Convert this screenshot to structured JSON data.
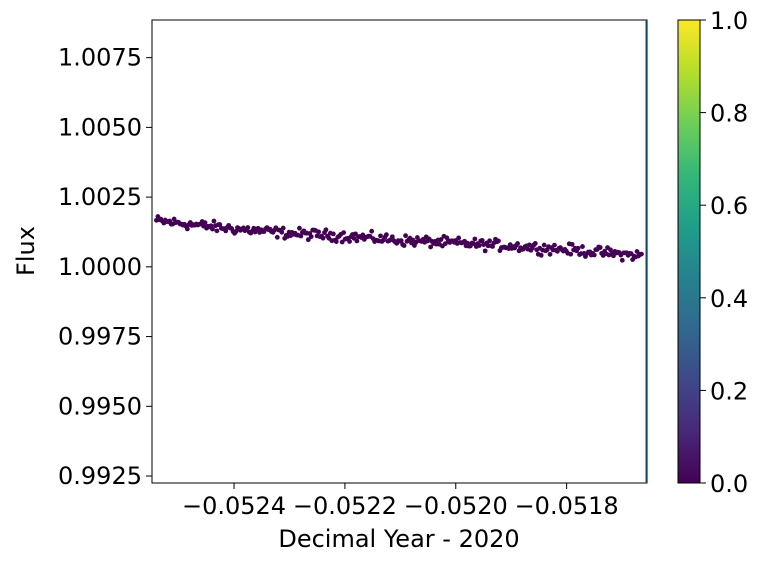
{
  "chart_data": {
    "type": "scatter",
    "xlabel": "Decimal Year - 2020",
    "ylabel": "Flux",
    "xlim": [
      -0.052548,
      -0.051655
    ],
    "ylim": [
      0.99225,
      1.00885
    ],
    "xticks": [
      -0.0524,
      -0.0522,
      -0.052,
      -0.0518
    ],
    "xtick_labels": [
      "−0.0524",
      "−0.0522",
      "−0.0520",
      "−0.0518"
    ],
    "yticks": [
      0.9925,
      0.995,
      0.9975,
      1.0,
      1.0025,
      1.005,
      1.0075
    ],
    "ytick_labels": [
      "0.9925",
      "0.9950",
      "0.9975",
      "1.0000",
      "1.0025",
      "1.0050",
      "1.0075"
    ],
    "grid": false,
    "marker_color": "#440154",
    "colorbar": {
      "range": [
        0.0,
        1.0
      ],
      "ticks": [
        0.0,
        0.2,
        0.4,
        0.6,
        0.8,
        1.0
      ],
      "tick_labels": [
        "0.0",
        "0.2",
        "0.4",
        "0.6",
        "0.8",
        "1.0"
      ],
      "colormap": "viridis",
      "stops": [
        "#440154",
        "#482878",
        "#3e4989",
        "#31688e",
        "#26828e",
        "#1f9e89",
        "#35b779",
        "#6ece58",
        "#b5de2b",
        "#fde725"
      ]
    },
    "baseline": {
      "x": [
        -0.05254,
        -0.05242,
        -0.0523,
        -0.0522,
        -0.0521,
        -0.052,
        -0.0519,
        -0.0518,
        -0.0517,
        -0.051665
      ],
      "y": [
        1.00165,
        1.0014,
        1.0012,
        1.0011,
        1.00095,
        1.00085,
        1.00075,
        1.00062,
        1.00045,
        1.0004
      ]
    },
    "series": [
      {
        "description": "flux samples (~330 points, scatter around baseline)",
        "x_start": -0.05254,
        "x_end": -0.051665,
        "count": 330,
        "noise_amplitude": 0.00028
      }
    ]
  }
}
